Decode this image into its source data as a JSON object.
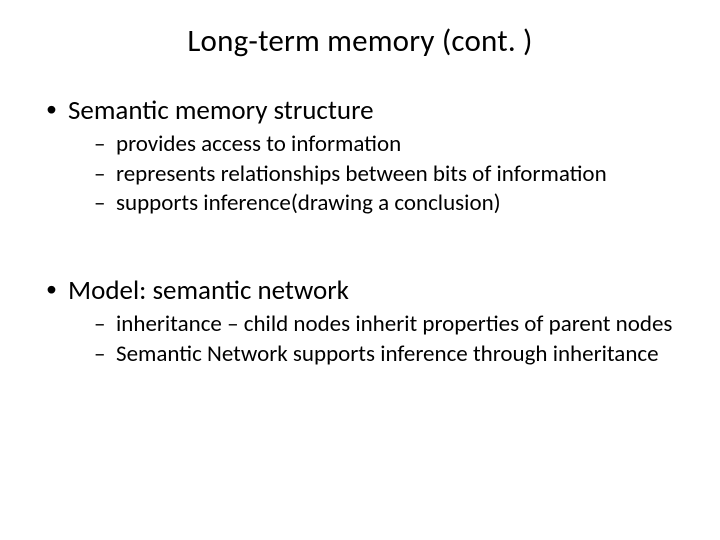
{
  "slide": {
    "title": "Long-term memory (cont. )",
    "bullets": [
      {
        "text": "Semantic memory structure",
        "children": [
          "provides access to information",
          "represents relationships between bits of information",
          "supports inference(drawing a conclusion)"
        ]
      },
      {
        "text": "Model: semantic network",
        "children": [
          "inheritance – child nodes inherit properties of parent nodes",
          "Semantic Network supports inference through inheritance"
        ]
      }
    ]
  }
}
